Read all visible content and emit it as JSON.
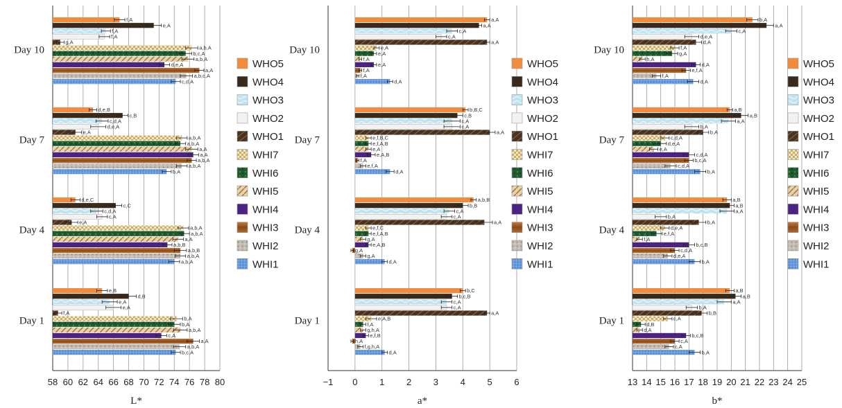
{
  "chart_data": [
    {
      "type": "bar",
      "orientation": "horizontal",
      "xlabel": "L*",
      "xlim": [
        58,
        80
      ],
      "ticks": [
        "58",
        "60",
        "62",
        "64",
        "66",
        "68",
        "70",
        "72",
        "74",
        "76",
        "78",
        "80"
      ],
      "categories": [
        "Day 10",
        "Day 7",
        "Day 4",
        "Day 1"
      ],
      "series_order": [
        "WHO5",
        "WHO4",
        "WHO3",
        "WHO2",
        "WHO1",
        "WHI7",
        "WHI6",
        "WHI5",
        "WHI4",
        "WHI3",
        "WHI2",
        "WHI1"
      ],
      "values": {
        "Day 10": [
          66.8,
          71.3,
          65.0,
          64.8,
          59.0,
          76.3,
          75.5,
          75.8,
          72.7,
          77.3,
          75.6,
          74.2
        ],
        "Day 7": [
          63.3,
          67.2,
          64.5,
          64.0,
          61.0,
          75.0,
          74.8,
          76.3,
          76.5,
          76.3,
          75.0,
          73.0
        ],
        "Day 4": [
          61.0,
          66.3,
          63.8,
          64.5,
          60.5,
          75.2,
          75.3,
          74.5,
          73.1,
          74.8,
          74.8,
          74.0
        ],
        "Day 1": [
          64.5,
          68.0,
          65.5,
          66.0,
          58.7,
          74.3,
          74.0,
          74.8,
          72.3,
          76.5,
          74.7,
          74.2
        ]
      },
      "errors": {
        "Day 10": [
          0.7,
          1.0,
          0.6,
          0.7,
          0.5,
          0.8,
          0.8,
          0.8,
          0.7,
          0.6,
          0.8,
          0.6
        ],
        "Day 7": [
          0.5,
          0.7,
          0.8,
          1.0,
          0.8,
          0.7,
          0.7,
          0.8,
          0.7,
          0.6,
          0.7,
          0.6
        ],
        "Day 4": [
          0.6,
          0.8,
          0.8,
          0.7,
          0.8,
          0.7,
          0.7,
          0.7,
          0.6,
          0.8,
          0.7,
          0.7
        ],
        "Day 1": [
          0.7,
          1.0,
          1.0,
          1.0,
          0.5,
          0.8,
          0.8,
          0.9,
          0.7,
          0.8,
          0.8,
          0.6
        ]
      },
      "annotations": {
        "Day 10": [
          "f,A",
          "e,A",
          "f,A",
          "f,A",
          "g,A",
          "a,b,A",
          "b,c,A",
          "a,b,A",
          "d,e,A",
          "a,A",
          "a,b,c,A",
          "c,d,A"
        ],
        "Day 7": [
          "d,e,B",
          "c,B",
          "c,d,A",
          "d,e,A",
          "e,A",
          "a,b,A",
          "a,b,A",
          "a,A",
          "a,A",
          "a,b,A",
          "a,b,A",
          "b,A"
        ],
        "Day 4": [
          "d,e,C",
          "c,C",
          "c,d,A",
          "c,A",
          "e,A",
          "a,b,A",
          "a,b,A",
          "a,A",
          "a,b,B",
          "a,b,B",
          "a,b,A",
          "a,b,A"
        ],
        "Day 1": [
          "e,B",
          "d,B",
          "e,A",
          "e,A",
          "f,A",
          "b,A",
          "b,A",
          "a,b,A",
          "c,A",
          "a,A",
          "a,b,A",
          "b,c,A"
        ]
      }
    },
    {
      "type": "bar",
      "orientation": "horizontal",
      "xlabel": "a*",
      "xlim": [
        -1,
        6
      ],
      "ticks": [
        "−1",
        "0",
        "1",
        "2",
        "3",
        "4",
        "5",
        "6"
      ],
      "categories": [
        "Day 10",
        "Day 7",
        "Day 4",
        "Day 1"
      ],
      "series_order": [
        "WHO5",
        "WHO4",
        "WHO3",
        "WHO2",
        "WHO1",
        "WHI7",
        "WHI6",
        "WHI5",
        "WHI4",
        "WHI3",
        "WHI2",
        "WHI1"
      ],
      "values": {
        "Day 10": [
          4.9,
          4.6,
          3.6,
          3.2,
          4.9,
          0.8,
          0.7,
          0.2,
          0.7,
          0.2,
          0.1,
          1.3
        ],
        "Day 7": [
          4.1,
          3.8,
          3.6,
          3.6,
          5.0,
          0.5,
          0.5,
          0.5,
          0.6,
          0.1,
          0.3,
          1.3
        ],
        "Day 4": [
          4.4,
          4.0,
          3.5,
          3.4,
          4.8,
          0.5,
          0.5,
          0.3,
          0.5,
          -0.1,
          0.3,
          1.1
        ],
        "Day 1": [
          4.0,
          3.6,
          3.4,
          3.4,
          4.9,
          0.6,
          0.3,
          0.3,
          0.4,
          -0.1,
          0.2,
          1.1
        ]
      },
      "errors": {
        "Day 10": [
          0.1,
          0.1,
          0.2,
          0.2,
          0.1,
          0.1,
          0.1,
          0.05,
          0.1,
          0.05,
          0.05,
          0.1
        ],
        "Day 7": [
          0.1,
          0.2,
          0.3,
          0.3,
          0.2,
          0.1,
          0.1,
          0.1,
          0.15,
          0.05,
          0.1,
          0.15
        ],
        "Day 4": [
          0.1,
          0.2,
          0.2,
          0.2,
          0.3,
          0.1,
          0.1,
          0.1,
          0.1,
          0.05,
          0.1,
          0.1
        ],
        "Day 1": [
          0.1,
          0.2,
          0.2,
          0.2,
          0.1,
          0.2,
          0.1,
          0.1,
          0.1,
          0.05,
          0.1,
          0.1
        ]
      },
      "annotations": {
        "Day 10": [
          "a,A",
          "a,A",
          "c,A",
          "c,A",
          "a,A",
          "e,A",
          "e,A",
          "f,A",
          "e,A",
          "f,A",
          "f,A",
          "d,A"
        ],
        "Day 7": [
          "b,B,C",
          "c,B",
          "c,A",
          "c,A",
          "a,A",
          "e,f,B,C",
          "e,f,A,B",
          "e,A",
          "e,A,B",
          "f,A",
          "e,f,A",
          "d,A"
        ],
        "Day 4": [
          "a,b,B",
          "b,B",
          "c,A",
          "c,A",
          "a,A",
          "e,f,C",
          "e,f,A,B",
          "g,A",
          "e,A,B",
          "g,A",
          "g,A",
          "d,A"
        ],
        "Day 1": [
          "b,C",
          "b,c,B",
          "c,A",
          "c,A",
          "a,A",
          "e,A,B",
          "f,A",
          "g,h,A",
          "e,f,B",
          "h,A",
          "f,g,h,A",
          "d,A"
        ]
      }
    },
    {
      "type": "bar",
      "orientation": "horizontal",
      "xlabel": "b*",
      "xlim": [
        13,
        25
      ],
      "ticks": [
        "13",
        "14",
        "15",
        "16",
        "17",
        "18",
        "19",
        "20",
        "21",
        "22",
        "23",
        "24",
        "25"
      ],
      "categories": [
        "Day 10",
        "Day 7",
        "Day 4",
        "Day 1"
      ],
      "series_order": [
        "WHO5",
        "WHO4",
        "WHO3",
        "WHO2",
        "WHO1",
        "WHI7",
        "WHI6",
        "WHI5",
        "WHI4",
        "WHI3",
        "WHI2",
        "WHI1"
      ],
      "values": {
        "Day 10": [
          21.5,
          22.5,
          20.0,
          17.2,
          17.5,
          16.0,
          15.8,
          13.7,
          17.5,
          16.8,
          14.7,
          17.3
        ],
        "Day 7": [
          19.9,
          20.7,
          19.8,
          17.2,
          18.0,
          15.3,
          15.0,
          14.5,
          17.0,
          17.0,
          15.7,
          17.8
        ],
        "Day 4": [
          19.7,
          19.9,
          19.7,
          15.0,
          17.7,
          15.3,
          14.7,
          13.5,
          17.0,
          16.0,
          15.5,
          17.4
        ],
        "Day 1": [
          19.9,
          20.3,
          19.5,
          17.2,
          17.9,
          15.5,
          13.6,
          13.5,
          16.8,
          16.0,
          15.6,
          17.4
        ]
      },
      "errors": {
        "Day 10": [
          0.4,
          0.5,
          0.4,
          0.5,
          0.4,
          0.3,
          0.4,
          0.2,
          0.3,
          0.3,
          0.3,
          0.4
        ],
        "Day 7": [
          0.2,
          0.5,
          0.5,
          0.5,
          0.4,
          0.3,
          0.4,
          0.3,
          0.4,
          0.3,
          0.4,
          0.4
        ],
        "Day 4": [
          0.3,
          0.3,
          0.5,
          0.4,
          0.5,
          0.3,
          0.4,
          0.2,
          0.4,
          0.3,
          0.3,
          0.4
        ],
        "Day 1": [
          0.3,
          0.4,
          0.5,
          0.4,
          0.4,
          0.3,
          0.3,
          0.2,
          0.3,
          0.3,
          0.3,
          0.4
        ]
      },
      "annotations": {
        "Day 10": [
          "b,A",
          "a,A",
          "c,A",
          "d,e,A",
          "d,A",
          "f,A",
          "g,A",
          "h,A",
          "d,A",
          "e,f,A",
          "f,A",
          "d,A"
        ],
        "Day 7": [
          "a,B",
          "a,B",
          "a,A",
          "b,A",
          "b,A",
          "c,d,A",
          "d,e,A",
          "e,A",
          "c,d,A",
          "b,c,A",
          "c,d,A",
          "b,A"
        ],
        "Day 4": [
          "a,B",
          "a,B",
          "a,A",
          "b,A",
          "b,A",
          "d,e,A",
          "e,f,A",
          "f,A",
          "b,c,B",
          "c,d,A",
          "d,e,A",
          "b,A"
        ],
        "Day 1": [
          "a,B",
          "a,B",
          "a,A",
          "b,A",
          "b,B",
          "c,A",
          "d,B",
          "d,A",
          "b,c,B",
          "c,A",
          "c,A",
          "b,A"
        ]
      }
    }
  ],
  "legend": [
    {
      "label": "WHO5",
      "color": "#f28c3c",
      "pattern": "solid"
    },
    {
      "label": "WHO4",
      "color": "#3a2a1c",
      "pattern": "solid"
    },
    {
      "label": "WHO3",
      "color": "#bfe3ef",
      "pattern": "marble"
    },
    {
      "label": "WHO2",
      "color": "#f2f2f2",
      "pattern": "solid"
    },
    {
      "label": "WHO1",
      "color": "#4a3221",
      "pattern": "wood"
    },
    {
      "label": "WHI7",
      "color": "#e9d7a6",
      "pattern": "check"
    },
    {
      "label": "WHI6",
      "color": "#1f5a2e",
      "pattern": "mottled"
    },
    {
      "label": "WHI5",
      "color": "#d9b98c",
      "pattern": "diagonal"
    },
    {
      "label": "WHI4",
      "color": "#4b2382",
      "pattern": "solid"
    },
    {
      "label": "WHI3",
      "color": "#9c5b26",
      "pattern": "gradient"
    },
    {
      "label": "WHI2",
      "color": "#b5aba2",
      "pattern": "speckle"
    },
    {
      "label": "WHI1",
      "color": "#5b8fd6",
      "pattern": "grid"
    }
  ]
}
